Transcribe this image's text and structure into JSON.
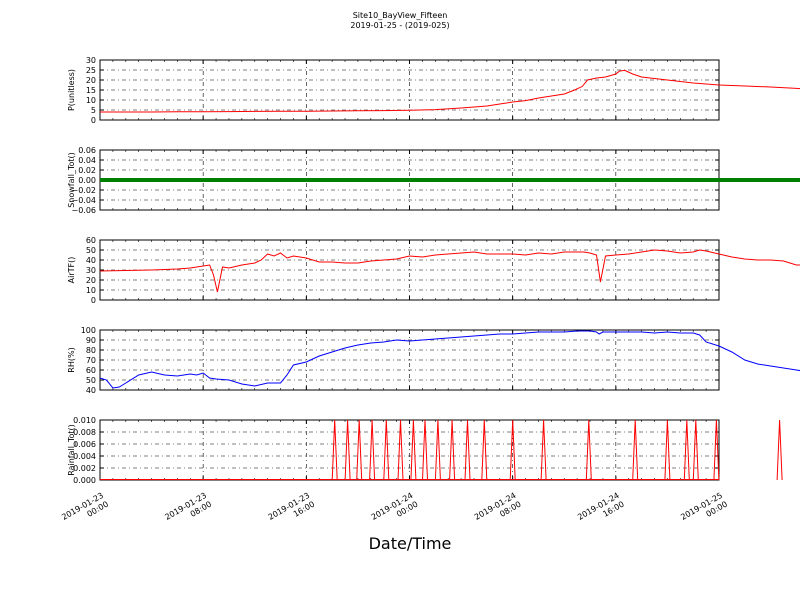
{
  "title": "Site10_BayView_Fifteen",
  "subtitle": "2019-01-25 - (2019-025)",
  "xlabel": "Date/Time",
  "chart_data": [
    {
      "type": "line",
      "ylabel": "P(unitless)",
      "ylim": [
        0,
        30
      ],
      "yticks": [
        "0",
        "5",
        "10",
        "15",
        "20",
        "25",
        "30"
      ],
      "grid": true,
      "series": [
        {
          "color": "#ff0000",
          "points": [
            [
              0,
              4.0
            ],
            [
              2,
              4.0
            ],
            [
              4,
              4.0
            ],
            [
              6,
              4.1
            ],
            [
              8,
              4.1
            ],
            [
              10,
              4.2
            ],
            [
              12,
              4.3
            ],
            [
              14,
              4.4
            ],
            [
              16,
              4.4
            ],
            [
              18,
              4.5
            ],
            [
              20,
              4.6
            ],
            [
              22,
              4.7
            ],
            [
              24,
              4.9
            ],
            [
              26,
              5.2
            ],
            [
              28,
              6.0
            ],
            [
              30,
              7.0
            ],
            [
              31,
              8.0
            ],
            [
              32,
              9.0
            ],
            [
              33,
              9.7
            ],
            [
              34,
              11.0
            ],
            [
              35,
              12.0
            ],
            [
              36,
              13.0
            ],
            [
              36.8,
              15.0
            ],
            [
              37.4,
              16.8
            ],
            [
              37.8,
              20.0
            ],
            [
              38.5,
              21.0
            ],
            [
              39.2,
              21.5
            ],
            [
              40,
              23.0
            ],
            [
              40.3,
              24.5
            ],
            [
              40.7,
              24.8
            ],
            [
              41.3,
              23.0
            ],
            [
              42,
              21.5
            ],
            [
              44,
              20.0
            ],
            [
              46,
              18.5
            ],
            [
              48,
              17.5
            ],
            [
              50,
              17.0
            ],
            [
              52,
              16.5
            ],
            [
              54,
              15.8
            ],
            [
              55,
              15.4
            ]
          ]
        }
      ]
    },
    {
      "type": "line",
      "ylabel": "Snowfall_Tot()",
      "ylim": [
        -0.06,
        0.06
      ],
      "yticks": [
        "−0.06",
        "−0.04",
        "−0.02",
        "0.00",
        "0.02",
        "0.04",
        "0.06"
      ],
      "grid": true,
      "series": [
        {
          "color": "#008000",
          "points": [
            [
              0,
              0
            ],
            [
              55,
              0
            ]
          ]
        }
      ]
    },
    {
      "type": "line",
      "ylabel": "AirTF()",
      "ylim": [
        0,
        60
      ],
      "yticks": [
        "0",
        "10",
        "20",
        "30",
        "40",
        "50",
        "60"
      ],
      "grid": true,
      "series": [
        {
          "color": "#ff0000",
          "points": [
            [
              0,
              29
            ],
            [
              2,
              29.5
            ],
            [
              4,
              30
            ],
            [
              6,
              31
            ],
            [
              7,
              32
            ],
            [
              8,
              34
            ],
            [
              8.5,
              35
            ],
            [
              8.8,
              25
            ],
            [
              9.1,
              8
            ],
            [
              9.5,
              33
            ],
            [
              10,
              32
            ],
            [
              11,
              35
            ],
            [
              12,
              37
            ],
            [
              12.5,
              40
            ],
            [
              13,
              46
            ],
            [
              13.5,
              44
            ],
            [
              14,
              47
            ],
            [
              14.5,
              42
            ],
            [
              15,
              44
            ],
            [
              16,
              42
            ],
            [
              17,
              38
            ],
            [
              18,
              38
            ],
            [
              19,
              37
            ],
            [
              20,
              37
            ],
            [
              21,
              39
            ],
            [
              22,
              40
            ],
            [
              23,
              41
            ],
            [
              24,
              44
            ],
            [
              25,
              43
            ],
            [
              26,
              45
            ],
            [
              27,
              46
            ],
            [
              28,
              47
            ],
            [
              29,
              48
            ],
            [
              30,
              46
            ],
            [
              31,
              46
            ],
            [
              32,
              46
            ],
            [
              33,
              45
            ],
            [
              34,
              47
            ],
            [
              35,
              46
            ],
            [
              36,
              48
            ],
            [
              37,
              48
            ],
            [
              37.5,
              48
            ],
            [
              38,
              47
            ],
            [
              38.5,
              45
            ],
            [
              38.8,
              18
            ],
            [
              39.2,
              44
            ],
            [
              40,
              45
            ],
            [
              41,
              46
            ],
            [
              42,
              48
            ],
            [
              43,
              50
            ],
            [
              44,
              49
            ],
            [
              45,
              47
            ],
            [
              46,
              48
            ],
            [
              46.5,
              50
            ],
            [
              47,
              49
            ],
            [
              48,
              46
            ],
            [
              49,
              43
            ],
            [
              50,
              41
            ],
            [
              51,
              40
            ],
            [
              52,
              40
            ],
            [
              53,
              39
            ],
            [
              53.5,
              37
            ],
            [
              54,
              35
            ],
            [
              55,
              35
            ]
          ]
        }
      ]
    },
    {
      "type": "line",
      "ylabel": "RH(%)",
      "ylim": [
        40,
        100
      ],
      "yticks": [
        "40",
        "50",
        "60",
        "70",
        "80",
        "90",
        "100"
      ],
      "grid": true,
      "series": [
        {
          "color": "#0000ff",
          "points": [
            [
              0,
              52
            ],
            [
              0.5,
              50
            ],
            [
              1,
              42
            ],
            [
              1.5,
              43
            ],
            [
              2,
              47
            ],
            [
              3,
              55
            ],
            [
              4,
              58
            ],
            [
              5,
              55
            ],
            [
              6,
              54
            ],
            [
              7,
              56
            ],
            [
              7.5,
              55
            ],
            [
              8,
              57
            ],
            [
              8.5,
              52
            ],
            [
              9,
              51
            ],
            [
              10,
              50
            ],
            [
              11,
              46
            ],
            [
              12,
              44
            ],
            [
              13,
              47
            ],
            [
              14,
              47
            ],
            [
              14.5,
              55
            ],
            [
              15,
              65
            ],
            [
              16,
              68
            ],
            [
              17,
              74
            ],
            [
              18,
              78
            ],
            [
              19,
              82
            ],
            [
              20,
              85
            ],
            [
              21,
              87
            ],
            [
              22,
              88
            ],
            [
              23,
              90
            ],
            [
              24,
              89
            ],
            [
              25,
              90
            ],
            [
              26,
              91
            ],
            [
              27,
              92
            ],
            [
              28,
              93
            ],
            [
              29,
              94
            ],
            [
              30,
              95
            ],
            [
              31,
              96
            ],
            [
              32,
              96
            ],
            [
              33,
              97
            ],
            [
              34,
              98
            ],
            [
              35,
              98
            ],
            [
              36,
              98
            ],
            [
              37,
              99
            ],
            [
              38,
              99
            ],
            [
              38.5,
              98
            ],
            [
              38.7,
              96
            ],
            [
              39,
              98
            ],
            [
              40,
              98
            ],
            [
              41,
              98
            ],
            [
              42,
              98
            ],
            [
              43,
              97
            ],
            [
              44,
              98
            ],
            [
              45,
              97
            ],
            [
              46,
              97
            ],
            [
              46.5,
              95
            ],
            [
              47,
              88
            ],
            [
              48,
              84
            ],
            [
              49,
              78
            ],
            [
              50,
              70
            ],
            [
              51,
              66
            ],
            [
              52,
              64
            ],
            [
              53,
              62
            ],
            [
              54,
              60
            ],
            [
              55,
              58
            ],
            [
              56,
              56
            ],
            [
              57,
              55
            ],
            [
              58,
              54
            ],
            [
              59,
              55
            ],
            [
              60,
              55
            ]
          ]
        }
      ]
    },
    {
      "type": "line",
      "ylabel": "Rainfall_Tot()",
      "ylim": [
        0,
        0.01
      ],
      "yticks": [
        "0.000",
        "0.002",
        "0.004",
        "0.006",
        "0.008",
        "0.010"
      ],
      "grid": true,
      "series": [
        {
          "color": "#ff0000",
          "spikes": [
            18.2,
            19.2,
            20.1,
            21.1,
            22.2,
            23.3,
            24.3,
            25.2,
            26.2,
            27.3,
            28.5,
            29.8,
            32.0,
            34.4,
            37.9,
            41.5,
            44.0,
            45.5,
            46.2,
            47.8,
            52.7
          ]
        }
      ]
    }
  ],
  "xticks": [
    {
      "line1": "2019-01-23",
      "line2": "00:00"
    },
    {
      "line1": "2019-01-23",
      "line2": "08:00"
    },
    {
      "line1": "2019-01-23",
      "line2": "16:00"
    },
    {
      "line1": "2019-01-24",
      "line2": "00:00"
    },
    {
      "line1": "2019-01-24",
      "line2": "08:00"
    },
    {
      "line1": "2019-01-24",
      "line2": "16:00"
    },
    {
      "line1": "2019-01-25",
      "line2": "00:00"
    }
  ]
}
